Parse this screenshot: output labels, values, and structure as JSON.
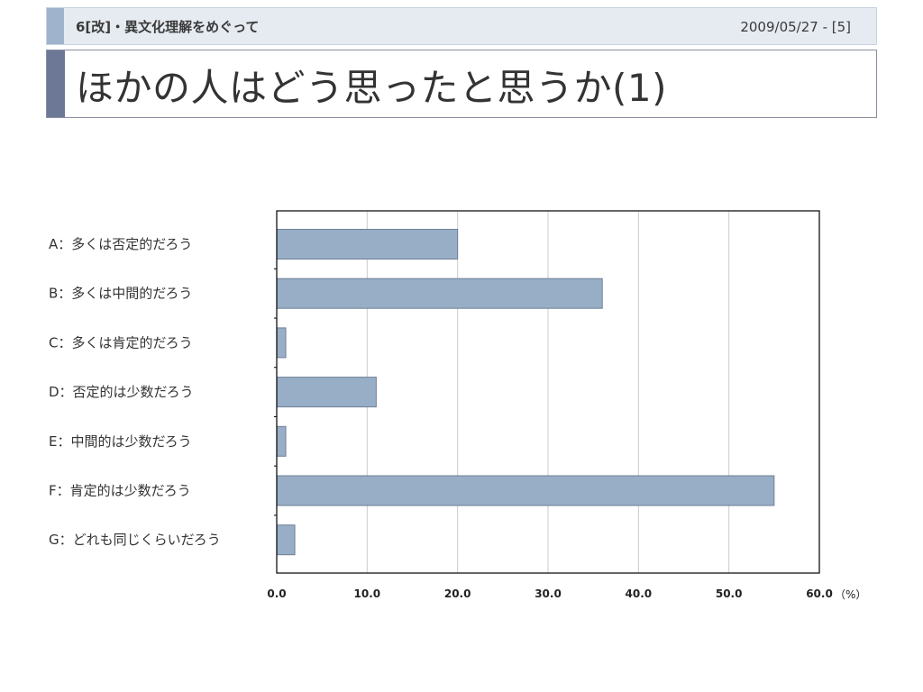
{
  "header": {
    "section": "6[改]・異文化理解をめぐって",
    "date": "2009/05/27 - [5]"
  },
  "title": "ほかの人はどう思ったと思うか(1)",
  "colors": {
    "bar_fill": "#98aec6",
    "bar_stroke": "#6d7f96",
    "grid": "#cccccc",
    "header_bg": "#e6ebf2",
    "header_accent": "#9fb3cc",
    "title_accent": "#6c7896"
  },
  "chart_data": {
    "type": "bar",
    "orientation": "horizontal",
    "categories": [
      "A：多くは否定的だろう",
      "B：多くは中間的だろう",
      "C：多くは肯定的だろう",
      "D：否定的は少数だろう",
      "E：中間的は少数だろう",
      "F：肯定的は少数だろう",
      "G：どれも同じくらいだろう"
    ],
    "values": [
      20.0,
      36.0,
      1.0,
      11.0,
      1.0,
      55.0,
      2.0
    ],
    "xlim": [
      0,
      60
    ],
    "x_ticks": [
      "0.0",
      "10.0",
      "20.0",
      "30.0",
      "40.0",
      "50.0",
      "60.0"
    ],
    "x_unit": "（%）",
    "grid": true
  }
}
